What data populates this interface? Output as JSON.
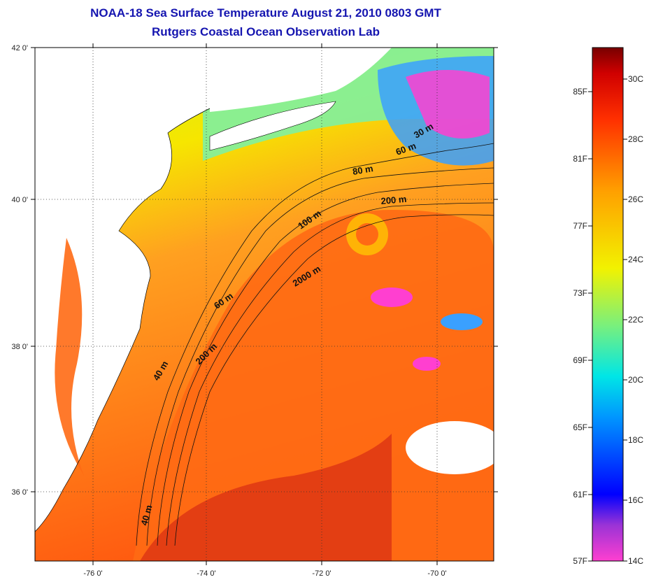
{
  "header": {
    "title_line1": "NOAA-18 Sea Surface Temperature August 21, 2010 0803 GMT",
    "title_line2": "Rutgers Coastal Ocean Observation Lab"
  },
  "axes": {
    "lat_labels": [
      "42 0'",
      "40 0'",
      "38 0'",
      "36 0'"
    ],
    "lon_labels": [
      "-76 0'",
      "-74 0'",
      "-72 0'",
      "-70 0'"
    ]
  },
  "contours": [
    "30 m",
    "60 m",
    "80 m",
    "200 m",
    "100 m",
    "2000 m",
    "60 m",
    "200 m",
    "40 m",
    "40 m"
  ],
  "colorbar": {
    "fahrenheit": [
      "85F",
      "81F",
      "77F",
      "73F",
      "69F",
      "65F",
      "61F",
      "57F"
    ],
    "celsius": [
      "30C",
      "28C",
      "26C",
      "24C",
      "22C",
      "20C",
      "18C",
      "16C",
      "14C"
    ],
    "colors": [
      "#ff3fd0",
      "#9a33d6",
      "#0000ff",
      "#0096ff",
      "#00e6e6",
      "#7bf07b",
      "#f2f200",
      "#ffa000",
      "#ff3000",
      "#d00000",
      "#780000"
    ]
  }
}
